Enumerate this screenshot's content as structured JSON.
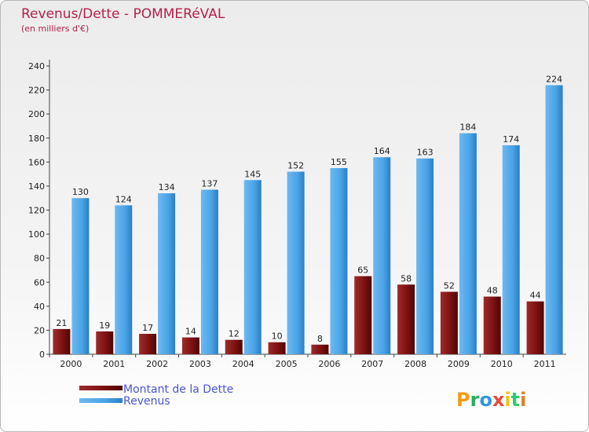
{
  "chart_data": {
    "type": "bar",
    "title": "Revenus/Dette - POMMERéVAL",
    "subtitle": "(en milliers d'€)",
    "categories": [
      "2000",
      "2001",
      "2002",
      "2003",
      "2004",
      "2005",
      "2006",
      "2007",
      "2008",
      "2009",
      "2010",
      "2011"
    ],
    "series": [
      {
        "name": "Montant de la Dette",
        "color": "#7a1010",
        "values": [
          21,
          19,
          17,
          14,
          12,
          10,
          8,
          65,
          58,
          52,
          48,
          44
        ]
      },
      {
        "name": "Revenus",
        "color": "#4aa3e6",
        "values": [
          130,
          124,
          134,
          137,
          145,
          152,
          155,
          164,
          163,
          184,
          174,
          224
        ]
      }
    ],
    "ylim": [
      0,
      240
    ],
    "yticks": [
      0,
      20,
      40,
      60,
      80,
      100,
      120,
      140,
      160,
      180,
      200,
      220,
      240
    ],
    "grid": false,
    "legend_position": "bottom-left"
  },
  "logo": {
    "letters": [
      "P",
      "r",
      "o",
      "x",
      "i",
      "t",
      "i"
    ],
    "colors": [
      "#f39c12",
      "#27ae60",
      "#3498db",
      "#e74c3c",
      "#f1c40f",
      "#2ecc71",
      "#e67e22"
    ]
  }
}
